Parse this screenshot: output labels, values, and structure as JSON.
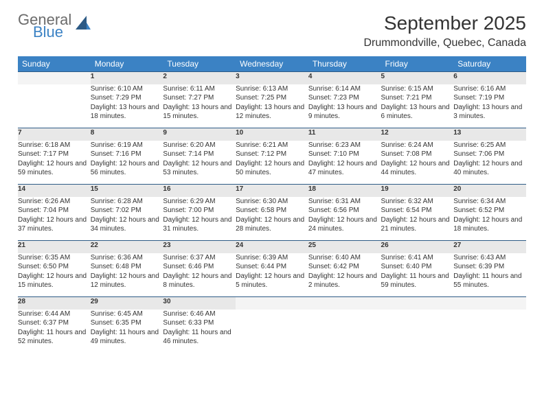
{
  "brand": {
    "word1": "General",
    "word2": "Blue",
    "word1_color": "#6b6b6b",
    "word2_color": "#3b82c4"
  },
  "title": "September 2025",
  "location": "Drummondville, Quebec, Canada",
  "header_bg": "#3b82c4",
  "header_text_color": "#ffffff",
  "daynum_bg": "#e8e8e8",
  "row_border_color": "#2c5a85",
  "weekdays": [
    "Sunday",
    "Monday",
    "Tuesday",
    "Wednesday",
    "Thursday",
    "Friday",
    "Saturday"
  ],
  "weeks": [
    [
      null,
      {
        "n": "1",
        "sr": "6:10 AM",
        "ss": "7:29 PM",
        "dl": "13 hours and 18 minutes."
      },
      {
        "n": "2",
        "sr": "6:11 AM",
        "ss": "7:27 PM",
        "dl": "13 hours and 15 minutes."
      },
      {
        "n": "3",
        "sr": "6:13 AM",
        "ss": "7:25 PM",
        "dl": "13 hours and 12 minutes."
      },
      {
        "n": "4",
        "sr": "6:14 AM",
        "ss": "7:23 PM",
        "dl": "13 hours and 9 minutes."
      },
      {
        "n": "5",
        "sr": "6:15 AM",
        "ss": "7:21 PM",
        "dl": "13 hours and 6 minutes."
      },
      {
        "n": "6",
        "sr": "6:16 AM",
        "ss": "7:19 PM",
        "dl": "13 hours and 3 minutes."
      }
    ],
    [
      {
        "n": "7",
        "sr": "6:18 AM",
        "ss": "7:17 PM",
        "dl": "12 hours and 59 minutes."
      },
      {
        "n": "8",
        "sr": "6:19 AM",
        "ss": "7:16 PM",
        "dl": "12 hours and 56 minutes."
      },
      {
        "n": "9",
        "sr": "6:20 AM",
        "ss": "7:14 PM",
        "dl": "12 hours and 53 minutes."
      },
      {
        "n": "10",
        "sr": "6:21 AM",
        "ss": "7:12 PM",
        "dl": "12 hours and 50 minutes."
      },
      {
        "n": "11",
        "sr": "6:23 AM",
        "ss": "7:10 PM",
        "dl": "12 hours and 47 minutes."
      },
      {
        "n": "12",
        "sr": "6:24 AM",
        "ss": "7:08 PM",
        "dl": "12 hours and 44 minutes."
      },
      {
        "n": "13",
        "sr": "6:25 AM",
        "ss": "7:06 PM",
        "dl": "12 hours and 40 minutes."
      }
    ],
    [
      {
        "n": "14",
        "sr": "6:26 AM",
        "ss": "7:04 PM",
        "dl": "12 hours and 37 minutes."
      },
      {
        "n": "15",
        "sr": "6:28 AM",
        "ss": "7:02 PM",
        "dl": "12 hours and 34 minutes."
      },
      {
        "n": "16",
        "sr": "6:29 AM",
        "ss": "7:00 PM",
        "dl": "12 hours and 31 minutes."
      },
      {
        "n": "17",
        "sr": "6:30 AM",
        "ss": "6:58 PM",
        "dl": "12 hours and 28 minutes."
      },
      {
        "n": "18",
        "sr": "6:31 AM",
        "ss": "6:56 PM",
        "dl": "12 hours and 24 minutes."
      },
      {
        "n": "19",
        "sr": "6:32 AM",
        "ss": "6:54 PM",
        "dl": "12 hours and 21 minutes."
      },
      {
        "n": "20",
        "sr": "6:34 AM",
        "ss": "6:52 PM",
        "dl": "12 hours and 18 minutes."
      }
    ],
    [
      {
        "n": "21",
        "sr": "6:35 AM",
        "ss": "6:50 PM",
        "dl": "12 hours and 15 minutes."
      },
      {
        "n": "22",
        "sr": "6:36 AM",
        "ss": "6:48 PM",
        "dl": "12 hours and 12 minutes."
      },
      {
        "n": "23",
        "sr": "6:37 AM",
        "ss": "6:46 PM",
        "dl": "12 hours and 8 minutes."
      },
      {
        "n": "24",
        "sr": "6:39 AM",
        "ss": "6:44 PM",
        "dl": "12 hours and 5 minutes."
      },
      {
        "n": "25",
        "sr": "6:40 AM",
        "ss": "6:42 PM",
        "dl": "12 hours and 2 minutes."
      },
      {
        "n": "26",
        "sr": "6:41 AM",
        "ss": "6:40 PM",
        "dl": "11 hours and 59 minutes."
      },
      {
        "n": "27",
        "sr": "6:43 AM",
        "ss": "6:39 PM",
        "dl": "11 hours and 55 minutes."
      }
    ],
    [
      {
        "n": "28",
        "sr": "6:44 AM",
        "ss": "6:37 PM",
        "dl": "11 hours and 52 minutes."
      },
      {
        "n": "29",
        "sr": "6:45 AM",
        "ss": "6:35 PM",
        "dl": "11 hours and 49 minutes."
      },
      {
        "n": "30",
        "sr": "6:46 AM",
        "ss": "6:33 PM",
        "dl": "11 hours and 46 minutes."
      },
      null,
      null,
      null,
      null
    ]
  ],
  "labels": {
    "sunrise": "Sunrise:",
    "sunset": "Sunset:",
    "daylight": "Daylight:"
  }
}
